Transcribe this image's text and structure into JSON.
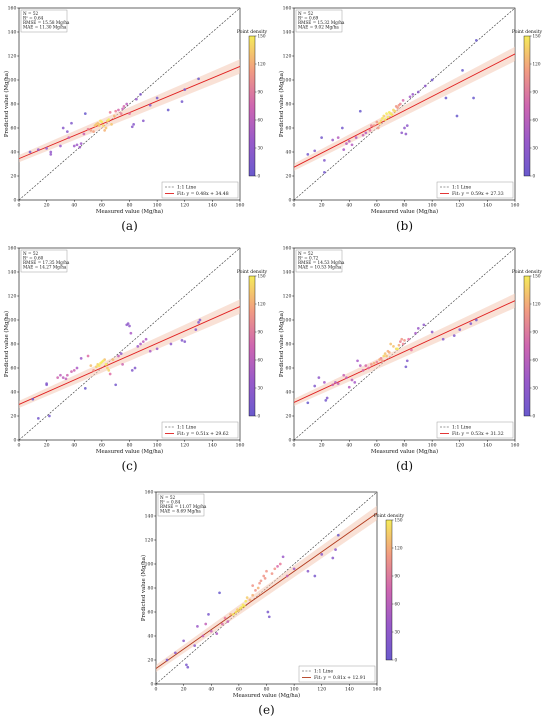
{
  "figure": {
    "shared": {
      "xlabel": "Measured value (Mg/ha)",
      "ylabel": "Predicted value (Mg/ha)",
      "xticks": [
        "0",
        "20",
        "40",
        "60",
        "80",
        "100",
        "120",
        "140",
        "160"
      ],
      "yticks": [
        "0",
        "20",
        "40",
        "60",
        "80",
        "100",
        "120",
        "140",
        "160"
      ],
      "colorbar_label": "Point density",
      "colorbar_ticks": [
        "0",
        "30",
        "60",
        "90",
        "120",
        "150"
      ],
      "legend_11": "1:1 Line",
      "legend_fit_prefix": "Fit:"
    },
    "panels": [
      {
        "label": "(a)",
        "n": "N = 52",
        "r2": "R² = 0.64",
        "rmse": "RMSE = 15.58 Mg/ha",
        "mae": "MAE = 11.30 Mg/ha",
        "fit": "y = 0.48x + 34.48"
      },
      {
        "label": "(b)",
        "n": "N = 52",
        "r2": "R² = 0.69",
        "rmse": "RMSE = 15.32 Mg/ha",
        "mae": "MAE = 9.02 Mg/ha",
        "fit": "y = 0.59x + 27.33"
      },
      {
        "label": "(c)",
        "n": "N = 52",
        "r2": "R² = 0.60",
        "rmse": "RMSE = 17.35 Mg/ha",
        "mae": "MAE = 14.27 Mg/ha",
        "fit": "y = 0.51x + 29.62"
      },
      {
        "label": "(d)",
        "n": "N = 52",
        "r2": "R² = 0.72",
        "rmse": "RMSE = 14.53 Mg/ha",
        "mae": "MAE = 10.53 Mg/ha",
        "fit": "y = 0.53x + 31.32"
      },
      {
        "label": "(e)",
        "n": "N = 52",
        "r2": "R² = 0.84",
        "rmse": "RMSE = 11.07 Mg/ha",
        "mae": "MAE = 8.69 Mg/ha",
        "fit": "y = 0.81x + 12.91"
      }
    ]
  },
  "chart_data": [
    {
      "type": "scatter",
      "panel": "(a)",
      "xlabel": "Measured value (Mg/ha)",
      "ylabel": "Predicted value (Mg/ha)",
      "xlim": [
        0,
        160
      ],
      "ylim": [
        0,
        160
      ],
      "colorbar": {
        "label": "Point density",
        "range": [
          0,
          150
        ]
      },
      "fit": {
        "slope": 0.48,
        "intercept": 34.48
      },
      "points": [
        [
          8,
          40
        ],
        [
          14,
          42
        ],
        [
          20,
          43
        ],
        [
          23,
          40
        ],
        [
          23,
          38
        ],
        [
          30,
          45
        ],
        [
          32,
          60
        ],
        [
          35,
          57
        ],
        [
          36,
          52
        ],
        [
          38,
          64
        ],
        [
          40,
          45
        ],
        [
          42,
          46
        ],
        [
          44,
          44
        ],
        [
          45,
          47
        ],
        [
          47,
          55
        ],
        [
          48,
          72
        ],
        [
          50,
          59
        ],
        [
          52,
          58
        ],
        [
          54,
          57
        ],
        [
          55,
          62
        ],
        [
          56,
          63
        ],
        [
          57,
          64
        ],
        [
          58,
          63
        ],
        [
          58,
          62
        ],
        [
          59,
          66
        ],
        [
          60,
          65
        ],
        [
          61,
          62
        ],
        [
          62,
          58
        ],
        [
          63,
          60
        ],
        [
          64,
          66
        ],
        [
          65,
          67
        ],
        [
          66,
          73
        ],
        [
          67,
          63
        ],
        [
          69,
          70
        ],
        [
          70,
          74
        ],
        [
          72,
          75
        ],
        [
          74,
          72
        ],
        [
          75,
          76
        ],
        [
          76,
          78
        ],
        [
          78,
          80
        ],
        [
          80,
          72
        ],
        [
          82,
          61
        ],
        [
          83,
          63
        ],
        [
          85,
          84
        ],
        [
          88,
          88
        ],
        [
          90,
          66
        ],
        [
          95,
          79
        ],
        [
          100,
          85
        ],
        [
          108,
          75
        ],
        [
          118,
          82
        ],
        [
          120,
          92
        ],
        [
          130,
          101
        ]
      ]
    },
    {
      "type": "scatter",
      "panel": "(b)",
      "xlabel": "Measured value (Mg/ha)",
      "ylabel": "Predicted value (Mg/ha)",
      "xlim": [
        0,
        160
      ],
      "ylim": [
        0,
        160
      ],
      "colorbar": {
        "label": "Point density",
        "range": [
          0,
          150
        ]
      },
      "fit": {
        "slope": 0.59,
        "intercept": 27.33
      },
      "points": [
        [
          10,
          38
        ],
        [
          15,
          41
        ],
        [
          20,
          52
        ],
        [
          22,
          33
        ],
        [
          22,
          23
        ],
        [
          28,
          50
        ],
        [
          32,
          52
        ],
        [
          35,
          60
        ],
        [
          36,
          42
        ],
        [
          38,
          47
        ],
        [
          40,
          49
        ],
        [
          42,
          46
        ],
        [
          45,
          52
        ],
        [
          48,
          74
        ],
        [
          50,
          54
        ],
        [
          52,
          56
        ],
        [
          55,
          58
        ],
        [
          56,
          62
        ],
        [
          58,
          62
        ],
        [
          60,
          65
        ],
        [
          61,
          60
        ],
        [
          62,
          64
        ],
        [
          63,
          66
        ],
        [
          64,
          68
        ],
        [
          65,
          70
        ],
        [
          66,
          67
        ],
        [
          67,
          72
        ],
        [
          68,
          69
        ],
        [
          69,
          73
        ],
        [
          70,
          72
        ],
        [
          71,
          71
        ],
        [
          72,
          75
        ],
        [
          73,
          74
        ],
        [
          74,
          78
        ],
        [
          75,
          77
        ],
        [
          76,
          79
        ],
        [
          77,
          80
        ],
        [
          78,
          56
        ],
        [
          79,
          83
        ],
        [
          80,
          60
        ],
        [
          81,
          55
        ],
        [
          82,
          62
        ],
        [
          84,
          86
        ],
        [
          86,
          88
        ],
        [
          90,
          90
        ],
        [
          95,
          95
        ],
        [
          100,
          100
        ],
        [
          110,
          85
        ],
        [
          118,
          70
        ],
        [
          122,
          108
        ],
        [
          130,
          85
        ],
        [
          132,
          133
        ]
      ]
    },
    {
      "type": "scatter",
      "panel": "(c)",
      "xlabel": "Measured value (Mg/ha)",
      "ylabel": "Predicted value (Mg/ha)",
      "xlim": [
        0,
        160
      ],
      "ylim": [
        0,
        160
      ],
      "colorbar": {
        "label": "Point density",
        "range": [
          0,
          150
        ]
      },
      "fit": {
        "slope": 0.51,
        "intercept": 29.62
      },
      "points": [
        [
          10,
          34
        ],
        [
          14,
          18
        ],
        [
          20,
          46
        ],
        [
          22,
          20
        ],
        [
          28,
          52
        ],
        [
          30,
          54
        ],
        [
          32,
          52
        ],
        [
          35,
          54
        ],
        [
          38,
          57
        ],
        [
          40,
          58
        ],
        [
          42,
          60
        ],
        [
          45,
          68
        ],
        [
          48,
          43
        ],
        [
          50,
          70
        ],
        [
          52,
          62
        ],
        [
          54,
          58
        ],
        [
          56,
          61
        ],
        [
          57,
          63
        ],
        [
          58,
          62
        ],
        [
          59,
          64
        ],
        [
          60,
          65
        ],
        [
          61,
          66
        ],
        [
          62,
          67
        ],
        [
          63,
          63
        ],
        [
          64,
          60
        ],
        [
          65,
          58
        ],
        [
          66,
          55
        ],
        [
          68,
          67
        ],
        [
          70,
          46
        ],
        [
          72,
          70
        ],
        [
          74,
          72
        ],
        [
          75,
          63
        ],
        [
          78,
          96
        ],
        [
          79,
          97
        ],
        [
          80,
          95
        ],
        [
          81,
          89
        ],
        [
          82,
          58
        ],
        [
          84,
          60
        ],
        [
          86,
          78
        ],
        [
          88,
          80
        ],
        [
          90,
          82
        ],
        [
          92,
          84
        ],
        [
          95,
          74
        ],
        [
          100,
          76
        ],
        [
          110,
          80
        ],
        [
          118,
          83
        ],
        [
          120,
          82
        ],
        [
          128,
          92
        ],
        [
          130,
          98
        ],
        [
          131,
          100
        ],
        [
          20,
          47
        ],
        [
          34,
          51
        ]
      ]
    },
    {
      "type": "scatter",
      "panel": "(d)",
      "xlabel": "Measured value (Mg/ha)",
      "ylabel": "Predicted value (Mg/ha)",
      "xlim": [
        0,
        160
      ],
      "ylim": [
        0,
        160
      ],
      "colorbar": {
        "label": "Point density",
        "range": [
          0,
          150
        ]
      },
      "fit": {
        "slope": 0.53,
        "intercept": 31.32
      },
      "points": [
        [
          10,
          31
        ],
        [
          15,
          45
        ],
        [
          18,
          52
        ],
        [
          22,
          48
        ],
        [
          23,
          33
        ],
        [
          24,
          35
        ],
        [
          28,
          46
        ],
        [
          32,
          47
        ],
        [
          36,
          54
        ],
        [
          38,
          52
        ],
        [
          40,
          44
        ],
        [
          42,
          50
        ],
        [
          44,
          48
        ],
        [
          46,
          66
        ],
        [
          48,
          62
        ],
        [
          50,
          58
        ],
        [
          52,
          62
        ],
        [
          54,
          60
        ],
        [
          56,
          63
        ],
        [
          58,
          64
        ],
        [
          60,
          65
        ],
        [
          62,
          67
        ],
        [
          63,
          68
        ],
        [
          64,
          66
        ],
        [
          65,
          70
        ],
        [
          66,
          72
        ],
        [
          67,
          70
        ],
        [
          68,
          74
        ],
        [
          69,
          73
        ],
        [
          70,
          80
        ],
        [
          72,
          78
        ],
        [
          74,
          76
        ],
        [
          75,
          76
        ],
        [
          76,
          79
        ],
        [
          77,
          82
        ],
        [
          78,
          84
        ],
        [
          79,
          80
        ],
        [
          80,
          83
        ],
        [
          81,
          61
        ],
        [
          82,
          66
        ],
        [
          83,
          84
        ],
        [
          85,
          75
        ],
        [
          88,
          89
        ],
        [
          90,
          93
        ],
        [
          94,
          96
        ],
        [
          100,
          90
        ],
        [
          108,
          84
        ],
        [
          116,
          87
        ],
        [
          120,
          92
        ],
        [
          128,
          97
        ],
        [
          132,
          100
        ],
        [
          30,
          48
        ]
      ]
    },
    {
      "type": "scatter",
      "panel": "(e)",
      "xlabel": "Measured value (Mg/ha)",
      "ylabel": "Predicted value (Mg/ha)",
      "xlim": [
        0,
        160
      ],
      "ylim": [
        0,
        160
      ],
      "colorbar": {
        "label": "Point density",
        "range": [
          0,
          150
        ]
      },
      "fit": {
        "slope": 0.81,
        "intercept": 12.91
      },
      "points": [
        [
          8,
          20
        ],
        [
          14,
          26
        ],
        [
          20,
          36
        ],
        [
          22,
          16
        ],
        [
          23,
          14
        ],
        [
          28,
          32
        ],
        [
          30,
          48
        ],
        [
          34,
          40
        ],
        [
          36,
          50
        ],
        [
          38,
          58
        ],
        [
          40,
          44
        ],
        [
          44,
          42
        ],
        [
          46,
          76
        ],
        [
          48,
          50
        ],
        [
          50,
          55
        ],
        [
          52,
          52
        ],
        [
          54,
          58
        ],
        [
          56,
          58
        ],
        [
          58,
          60
        ],
        [
          59,
          62
        ],
        [
          60,
          61
        ],
        [
          61,
          63
        ],
        [
          62,
          64
        ],
        [
          63,
          66
        ],
        [
          64,
          65
        ],
        [
          65,
          69
        ],
        [
          66,
          72
        ],
        [
          68,
          70
        ],
        [
          70,
          74
        ],
        [
          72,
          78
        ],
        [
          74,
          80
        ],
        [
          75,
          84
        ],
        [
          76,
          86
        ],
        [
          78,
          90
        ],
        [
          79,
          88
        ],
        [
          80,
          94
        ],
        [
          81,
          60
        ],
        [
          82,
          56
        ],
        [
          84,
          92
        ],
        [
          86,
          96
        ],
        [
          88,
          98
        ],
        [
          90,
          100
        ],
        [
          92,
          106
        ],
        [
          95,
          90
        ],
        [
          100,
          96
        ],
        [
          110,
          94
        ],
        [
          115,
          90
        ],
        [
          120,
          108
        ],
        [
          128,
          105
        ],
        [
          130,
          112
        ],
        [
          132,
          124
        ],
        [
          70,
          82
        ]
      ]
    }
  ]
}
